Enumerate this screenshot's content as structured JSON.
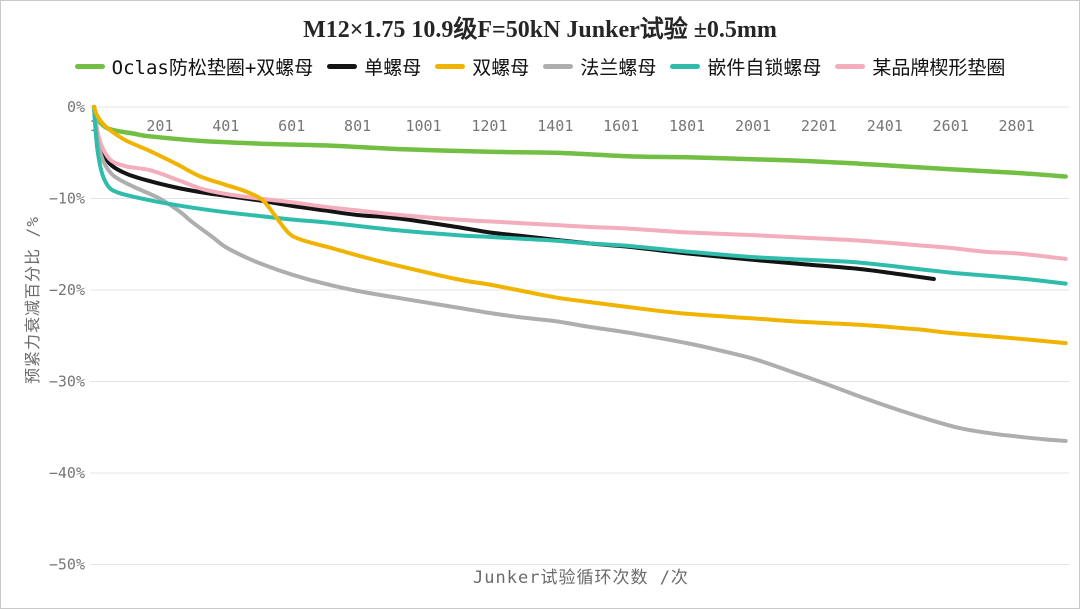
{
  "chart_data": {
    "type": "line",
    "title": "M12×1.75 10.9级F=50kN Junker试验 ±0.5mm",
    "xlabel": "Junker试验循环次数 /次",
    "ylabel": "预紧力衰减百分比 /%",
    "grid": true,
    "legend_position": "top",
    "xlim": [
      1,
      2960
    ],
    "ylim": [
      0,
      -50
    ],
    "x_ticks": [
      {
        "value": 1,
        "label": "1"
      },
      {
        "value": 201,
        "label": "201"
      },
      {
        "value": 401,
        "label": "401"
      },
      {
        "value": 601,
        "label": "601"
      },
      {
        "value": 801,
        "label": "801"
      },
      {
        "value": 1001,
        "label": "1001"
      },
      {
        "value": 1201,
        "label": "1201"
      },
      {
        "value": 1401,
        "label": "1401"
      },
      {
        "value": 1601,
        "label": "1601"
      },
      {
        "value": 1801,
        "label": "1801"
      },
      {
        "value": 2001,
        "label": "2001"
      },
      {
        "value": 2201,
        "label": "2201"
      },
      {
        "value": 2401,
        "label": "2401"
      },
      {
        "value": 2601,
        "label": "2601"
      },
      {
        "value": 2801,
        "label": "2801"
      }
    ],
    "y_ticks": [
      {
        "value": 0,
        "label": "0%"
      },
      {
        "value": -10,
        "label": "−10%"
      },
      {
        "value": -20,
        "label": "−20%"
      },
      {
        "value": -30,
        "label": "−30%"
      },
      {
        "value": -40,
        "label": "−40%"
      },
      {
        "value": -50,
        "label": "−50%"
      }
    ],
    "series": [
      {
        "name": "Oclas防松垫圈+双螺母",
        "color": "#72bf44",
        "points": [
          [
            1,
            0
          ],
          [
            8,
            -1.0
          ],
          [
            20,
            -1.7
          ],
          [
            40,
            -2.3
          ],
          [
            70,
            -2.6
          ],
          [
            120,
            -2.9
          ],
          [
            170,
            -3.2
          ],
          [
            324,
            -3.7
          ],
          [
            500,
            -4.0
          ],
          [
            700,
            -4.2
          ],
          [
            930,
            -4.6
          ],
          [
            1200,
            -4.9
          ],
          [
            1400,
            -5.0
          ],
          [
            1630,
            -5.4
          ],
          [
            1800,
            -5.5
          ],
          [
            2000,
            -5.7
          ],
          [
            2160,
            -5.9
          ],
          [
            2324,
            -6.2
          ],
          [
            2600,
            -6.8
          ],
          [
            2800,
            -7.2
          ],
          [
            2950,
            -7.6
          ]
        ]
      },
      {
        "name": "单螺母",
        "color": "#141414",
        "points": [
          [
            1,
            0
          ],
          [
            6,
            -1.5
          ],
          [
            15,
            -3.5
          ],
          [
            30,
            -5.2
          ],
          [
            55,
            -6.4
          ],
          [
            100,
            -7.3
          ],
          [
            170,
            -8.1
          ],
          [
            250,
            -8.8
          ],
          [
            324,
            -9.3
          ],
          [
            400,
            -9.7
          ],
          [
            500,
            -10.2
          ],
          [
            600,
            -10.8
          ],
          [
            700,
            -11.3
          ],
          [
            800,
            -11.8
          ],
          [
            930,
            -12.2
          ],
          [
            1100,
            -13.1
          ],
          [
            1200,
            -13.7
          ],
          [
            1300,
            -14.1
          ],
          [
            1400,
            -14.5
          ],
          [
            1500,
            -14.9
          ],
          [
            1630,
            -15.3
          ],
          [
            1800,
            -16.0
          ],
          [
            2000,
            -16.7
          ],
          [
            2160,
            -17.2
          ],
          [
            2324,
            -17.7
          ],
          [
            2450,
            -18.3
          ],
          [
            2550,
            -18.8
          ]
        ]
      },
      {
        "name": "双螺母",
        "color": "#f0b400",
        "points": [
          [
            1,
            0
          ],
          [
            10,
            -0.9
          ],
          [
            30,
            -1.9
          ],
          [
            60,
            -2.8
          ],
          [
            100,
            -3.7
          ],
          [
            170,
            -4.8
          ],
          [
            250,
            -6.2
          ],
          [
            324,
            -7.6
          ],
          [
            400,
            -8.5
          ],
          [
            460,
            -9.2
          ],
          [
            510,
            -10.1
          ],
          [
            545,
            -11.6
          ],
          [
            590,
            -13.7
          ],
          [
            630,
            -14.5
          ],
          [
            730,
            -15.5
          ],
          [
            830,
            -16.5
          ],
          [
            930,
            -17.4
          ],
          [
            1100,
            -18.8
          ],
          [
            1200,
            -19.4
          ],
          [
            1300,
            -20.1
          ],
          [
            1400,
            -20.8
          ],
          [
            1500,
            -21.3
          ],
          [
            1630,
            -21.9
          ],
          [
            1800,
            -22.6
          ],
          [
            2000,
            -23.1
          ],
          [
            2160,
            -23.5
          ],
          [
            2324,
            -23.8
          ],
          [
            2500,
            -24.3
          ],
          [
            2600,
            -24.7
          ],
          [
            2800,
            -25.3
          ],
          [
            2950,
            -25.8
          ]
        ]
      },
      {
        "name": "法兰螺母",
        "color": "#aeaeae",
        "points": [
          [
            1,
            0
          ],
          [
            6,
            -2.0
          ],
          [
            15,
            -4.2
          ],
          [
            30,
            -6.0
          ],
          [
            60,
            -7.5
          ],
          [
            120,
            -8.7
          ],
          [
            200,
            -10.0
          ],
          [
            260,
            -11.4
          ],
          [
            300,
            -12.6
          ],
          [
            360,
            -14.2
          ],
          [
            400,
            -15.3
          ],
          [
            460,
            -16.4
          ],
          [
            520,
            -17.3
          ],
          [
            600,
            -18.3
          ],
          [
            700,
            -19.3
          ],
          [
            800,
            -20.1
          ],
          [
            930,
            -20.9
          ],
          [
            1100,
            -21.9
          ],
          [
            1200,
            -22.5
          ],
          [
            1300,
            -23.0
          ],
          [
            1400,
            -23.4
          ],
          [
            1500,
            -24.0
          ],
          [
            1630,
            -24.7
          ],
          [
            1800,
            -25.8
          ],
          [
            1900,
            -26.6
          ],
          [
            2000,
            -27.5
          ],
          [
            2100,
            -28.7
          ],
          [
            2225,
            -30.3
          ],
          [
            2330,
            -31.7
          ],
          [
            2425,
            -32.9
          ],
          [
            2520,
            -34.0
          ],
          [
            2630,
            -35.1
          ],
          [
            2730,
            -35.7
          ],
          [
            2800,
            -36.0
          ],
          [
            2880,
            -36.3
          ],
          [
            2950,
            -36.5
          ]
        ]
      },
      {
        "name": "嵌件自锁螺母",
        "color": "#2fbcab",
        "points": [
          [
            1,
            0
          ],
          [
            5,
            -2.2
          ],
          [
            12,
            -4.8
          ],
          [
            25,
            -7.2
          ],
          [
            45,
            -8.7
          ],
          [
            70,
            -9.3
          ],
          [
            120,
            -9.8
          ],
          [
            200,
            -10.4
          ],
          [
            300,
            -11.0
          ],
          [
            400,
            -11.5
          ],
          [
            500,
            -11.9
          ],
          [
            600,
            -12.3
          ],
          [
            700,
            -12.6
          ],
          [
            800,
            -13.0
          ],
          [
            930,
            -13.5
          ],
          [
            1100,
            -14.0
          ],
          [
            1200,
            -14.2
          ],
          [
            1300,
            -14.4
          ],
          [
            1400,
            -14.6
          ],
          [
            1500,
            -14.9
          ],
          [
            1630,
            -15.2
          ],
          [
            1800,
            -15.8
          ],
          [
            2000,
            -16.4
          ],
          [
            2160,
            -16.7
          ],
          [
            2324,
            -17.0
          ],
          [
            2500,
            -17.7
          ],
          [
            2600,
            -18.1
          ],
          [
            2700,
            -18.4
          ],
          [
            2800,
            -18.7
          ],
          [
            2880,
            -19.0
          ],
          [
            2950,
            -19.3
          ]
        ]
      },
      {
        "name": "某品牌楔形垫圈",
        "color": "#f3adbc",
        "points": [
          [
            1,
            0
          ],
          [
            6,
            -1.5
          ],
          [
            15,
            -3.2
          ],
          [
            30,
            -4.7
          ],
          [
            55,
            -5.9
          ],
          [
            100,
            -6.5
          ],
          [
            170,
            -6.9
          ],
          [
            250,
            -7.9
          ],
          [
            324,
            -8.9
          ],
          [
            400,
            -9.5
          ],
          [
            500,
            -10.0
          ],
          [
            600,
            -10.4
          ],
          [
            700,
            -10.9
          ],
          [
            800,
            -11.3
          ],
          [
            930,
            -11.8
          ],
          [
            1100,
            -12.3
          ],
          [
            1200,
            -12.5
          ],
          [
            1300,
            -12.7
          ],
          [
            1400,
            -12.9
          ],
          [
            1500,
            -13.1
          ],
          [
            1630,
            -13.3
          ],
          [
            1800,
            -13.7
          ],
          [
            2000,
            -14.0
          ],
          [
            2160,
            -14.3
          ],
          [
            2324,
            -14.6
          ],
          [
            2500,
            -15.1
          ],
          [
            2600,
            -15.4
          ],
          [
            2700,
            -15.8
          ],
          [
            2800,
            -16.0
          ],
          [
            2880,
            -16.3
          ],
          [
            2950,
            -16.6
          ]
        ]
      }
    ],
    "colors": {
      "grid": "#e4e4e4",
      "tick_text": "#767676",
      "axis_title_text": "#6b6b6b",
      "title_text": "#262626"
    }
  }
}
